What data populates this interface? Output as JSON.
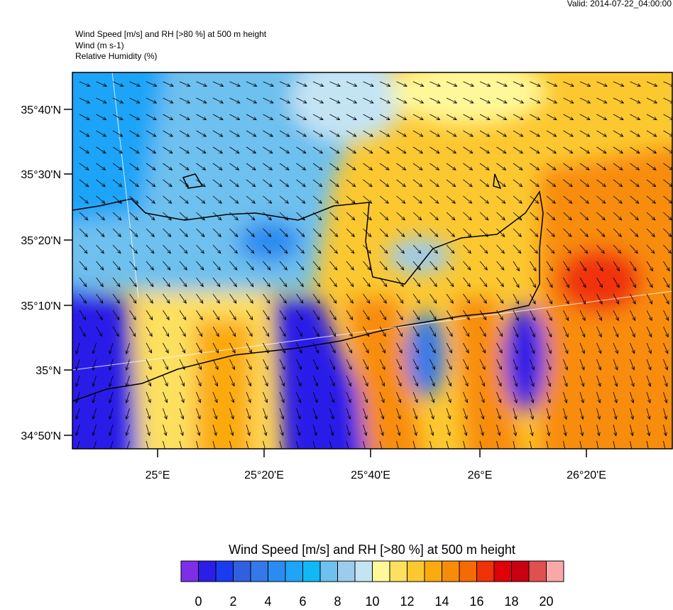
{
  "valid": "Valid: 2014-07-22_04:00:00",
  "header": {
    "lines": [
      "Wind Speed [m/s] and RH [>80 %] at 500 m height",
      "Wind   (m s-1)",
      "Relative Humidity   (%)"
    ]
  },
  "map": {
    "lat_labels": [
      "35°40'N",
      "35°30'N",
      "35°20'N",
      "35°10'N",
      "35°N",
      "34°50'N"
    ],
    "lon_labels": [
      "25°E",
      "25°20'E",
      "25°40'E",
      "26°E",
      "26°20'E"
    ]
  },
  "colorbar": {
    "title": "Wind Speed [m/s] and RH [>80 %] at 500 m height",
    "colors": [
      "#7f2ee8",
      "#2b1ee8",
      "#1a3cf0",
      "#3060e0",
      "#3578ea",
      "#2b8cf0",
      "#1ea4f8",
      "#10b8f5",
      "#6ec0ee",
      "#9ccbec",
      "#c4e4f4",
      "#fff89a",
      "#fde060",
      "#fcc830",
      "#fbaa10",
      "#f88c0a",
      "#f56a05",
      "#f03208",
      "#e0000a",
      "#c80010",
      "#e05050",
      "#f8a8a8"
    ],
    "labels": [
      0,
      2,
      4,
      6,
      8,
      10,
      12,
      14,
      16,
      18,
      20
    ]
  }
}
